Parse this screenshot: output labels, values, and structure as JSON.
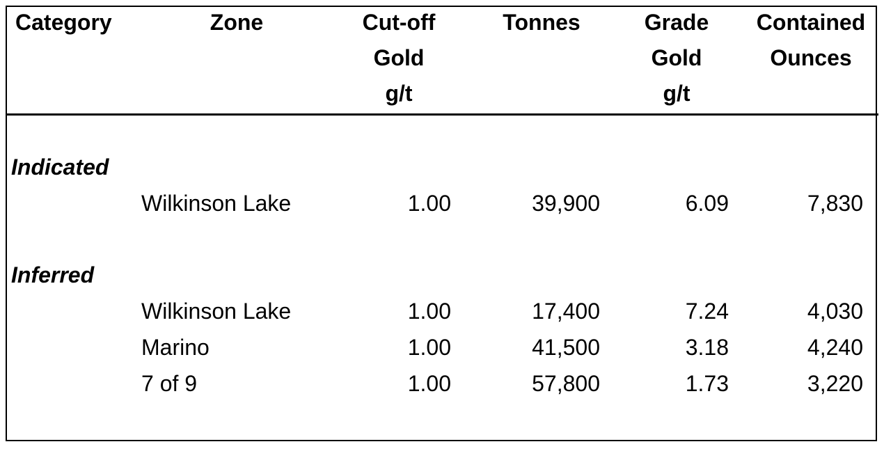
{
  "table": {
    "header": [
      [
        "Category"
      ],
      [
        "Zone"
      ],
      [
        "Cut-off",
        "Gold",
        "g/t"
      ],
      [
        "Tonnes"
      ],
      [
        "Grade",
        "Gold",
        "g/t"
      ],
      [
        "Contained",
        "Ounces"
      ]
    ],
    "groups": [
      {
        "category": "Indicated",
        "rows": [
          [
            "Wilkinson Lake",
            "1.00",
            "39,900",
            "6.09",
            "7,830"
          ]
        ]
      },
      {
        "category": "Inferred",
        "rows": [
          [
            "Wilkinson Lake",
            "1.00",
            "17,400",
            "7.24",
            "4,030"
          ],
          [
            "Marino",
            "1.00",
            "41,500",
            "3.18",
            "4,240"
          ],
          [
            "7 of 9",
            "1.00",
            "57,800",
            "1.73",
            "3,220"
          ]
        ]
      }
    ]
  }
}
